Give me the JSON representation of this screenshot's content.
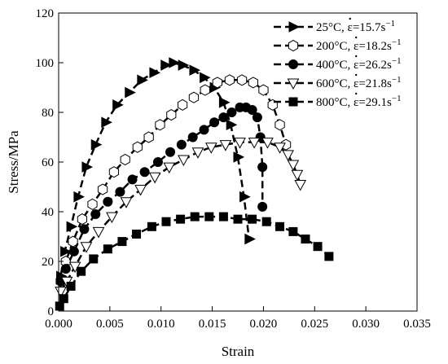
{
  "chart_data": {
    "type": "line",
    "title": "",
    "xlabel": "Strain",
    "ylabel": "Stress/MPa",
    "xlim": [
      0,
      0.035
    ],
    "ylim": [
      0,
      120
    ],
    "xticks": [
      "0.000",
      "0.005",
      "0.010",
      "0.015",
      "0.020",
      "0.025",
      "0.030",
      "0.035"
    ],
    "xtick_values": [
      0,
      0.005,
      0.01,
      0.015,
      0.02,
      0.025,
      0.03,
      0.035
    ],
    "yticks": [
      "0",
      "20",
      "40",
      "60",
      "80",
      "100",
      "120"
    ],
    "ytick_values": [
      0,
      20,
      40,
      60,
      80,
      100,
      120
    ],
    "grid": false,
    "legend_position": "top-right",
    "series": [
      {
        "name": "25°C, ε̇=15.7s⁻¹",
        "legend_temp": "25°C, ",
        "legend_eps": "ε",
        "legend_rate": "=15.7s",
        "legend_exp": "−1",
        "marker": "triangle-right",
        "color": "#000000",
        "x": [
          0.0002,
          0.0006,
          0.0012,
          0.0019,
          0.0027,
          0.0036,
          0.0046,
          0.0057,
          0.0069,
          0.0081,
          0.0093,
          0.0104,
          0.0112,
          0.0121,
          0.0132,
          0.0142,
          0.0152,
          0.0161,
          0.0168,
          0.0175,
          0.0181,
          0.0186
        ],
        "y": [
          14,
          24,
          34,
          46,
          58,
          67,
          76,
          83,
          88,
          93,
          96,
          99,
          100,
          99,
          97,
          94,
          90,
          84,
          75,
          62,
          46,
          29
        ]
      },
      {
        "name": "200°C, ε̇=18.2s⁻¹",
        "legend_temp": "200°C, ",
        "legend_eps": "ε",
        "legend_rate": "=18.2s",
        "legend_exp": "−1",
        "marker": "hexagon-open",
        "color": "#000000",
        "x": [
          0.0002,
          0.0007,
          0.0014,
          0.0023,
          0.0033,
          0.0043,
          0.0054,
          0.0065,
          0.0077,
          0.0088,
          0.0099,
          0.011,
          0.0121,
          0.0132,
          0.0143,
          0.0155,
          0.0167,
          0.0179,
          0.019,
          0.02,
          0.0209,
          0.0216,
          0.0222
        ],
        "y": [
          12,
          20,
          28,
          37,
          43,
          49,
          56,
          61,
          66,
          70,
          75,
          79,
          83,
          86,
          89,
          92,
          93,
          93,
          92,
          89,
          83,
          75,
          67
        ]
      },
      {
        "name": "400°C, ε̇=26.2s⁻¹",
        "legend_temp": "400°C, ",
        "legend_eps": "ε",
        "legend_rate": "=26.2s",
        "legend_exp": "−1",
        "marker": "circle-filled",
        "color": "#000000",
        "x": [
          0.0002,
          0.0007,
          0.0015,
          0.0025,
          0.0036,
          0.0048,
          0.006,
          0.0072,
          0.0084,
          0.0097,
          0.0109,
          0.012,
          0.0131,
          0.0142,
          0.0152,
          0.0161,
          0.0169,
          0.0177,
          0.0183,
          0.0189,
          0.0194,
          0.0197,
          0.0199,
          0.0199
        ],
        "y": [
          12,
          17,
          24,
          33,
          39,
          44,
          48,
          53,
          56,
          60,
          64,
          67,
          70,
          73,
          76,
          78,
          80,
          82,
          82,
          81,
          78,
          70,
          58,
          42
        ]
      },
      {
        "name": "600°C, ε̇=21.8s⁻¹",
        "legend_temp": "600°C, ",
        "legend_eps": "ε",
        "legend_rate": "=21.8s",
        "legend_exp": "−1",
        "marker": "triangle-down-open",
        "color": "#000000",
        "x": [
          0.0002,
          0.0008,
          0.0016,
          0.0027,
          0.0039,
          0.0052,
          0.0066,
          0.008,
          0.0094,
          0.0108,
          0.0122,
          0.0136,
          0.0149,
          0.0163,
          0.0177,
          0.0191,
          0.0204,
          0.0216,
          0.0224,
          0.0229,
          0.0233,
          0.0236
        ],
        "y": [
          8,
          12,
          18,
          26,
          32,
          38,
          44,
          49,
          54,
          58,
          61,
          64,
          66,
          67,
          68,
          68,
          68,
          66,
          63,
          59,
          55,
          51
        ]
      },
      {
        "name": "800°C, ε̇=29.1s⁻¹",
        "legend_temp": "800°C, ",
        "legend_eps": "ε",
        "legend_rate": "=29.1s",
        "legend_exp": "−1",
        "marker": "square-filled",
        "color": "#000000",
        "x": [
          0.0001,
          0.0005,
          0.0012,
          0.0022,
          0.0034,
          0.0048,
          0.0062,
          0.0076,
          0.0091,
          0.0105,
          0.0119,
          0.0133,
          0.0147,
          0.0161,
          0.0175,
          0.0189,
          0.0203,
          0.0216,
          0.0229,
          0.0241,
          0.0253,
          0.0264
        ],
        "y": [
          2,
          5,
          10,
          16,
          21,
          25,
          28,
          31,
          34,
          36,
          37,
          38,
          38,
          38,
          37,
          37,
          36,
          34,
          32,
          29,
          26,
          22
        ]
      }
    ]
  }
}
